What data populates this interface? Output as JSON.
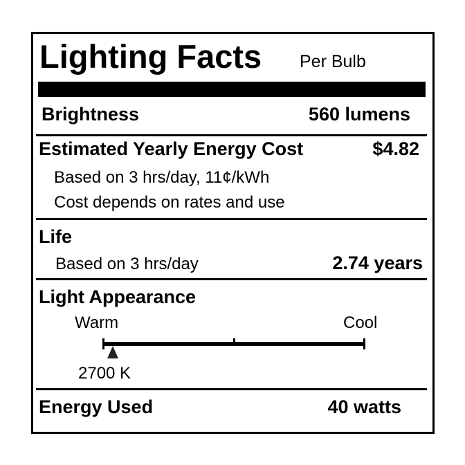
{
  "label": {
    "title": "Lighting Facts",
    "subtitle": "Per Bulb",
    "brightness": {
      "label": "Brightness",
      "value": "560 lumens"
    },
    "cost": {
      "label": "Estimated Yearly Energy Cost",
      "value": "$4.82",
      "note1": "Based on 3 hrs/day, 11¢/kWh",
      "note2": "Cost depends on rates and use"
    },
    "life": {
      "label": "Life",
      "note": "Based on 3 hrs/day",
      "value": "2.74 years"
    },
    "appearance": {
      "label": "Light Appearance",
      "warm": "Warm",
      "cool": "Cool",
      "value": "2700 K",
      "marker_fraction": 0.04
    },
    "energy": {
      "label": "Energy Used",
      "value": "40 watts"
    }
  }
}
